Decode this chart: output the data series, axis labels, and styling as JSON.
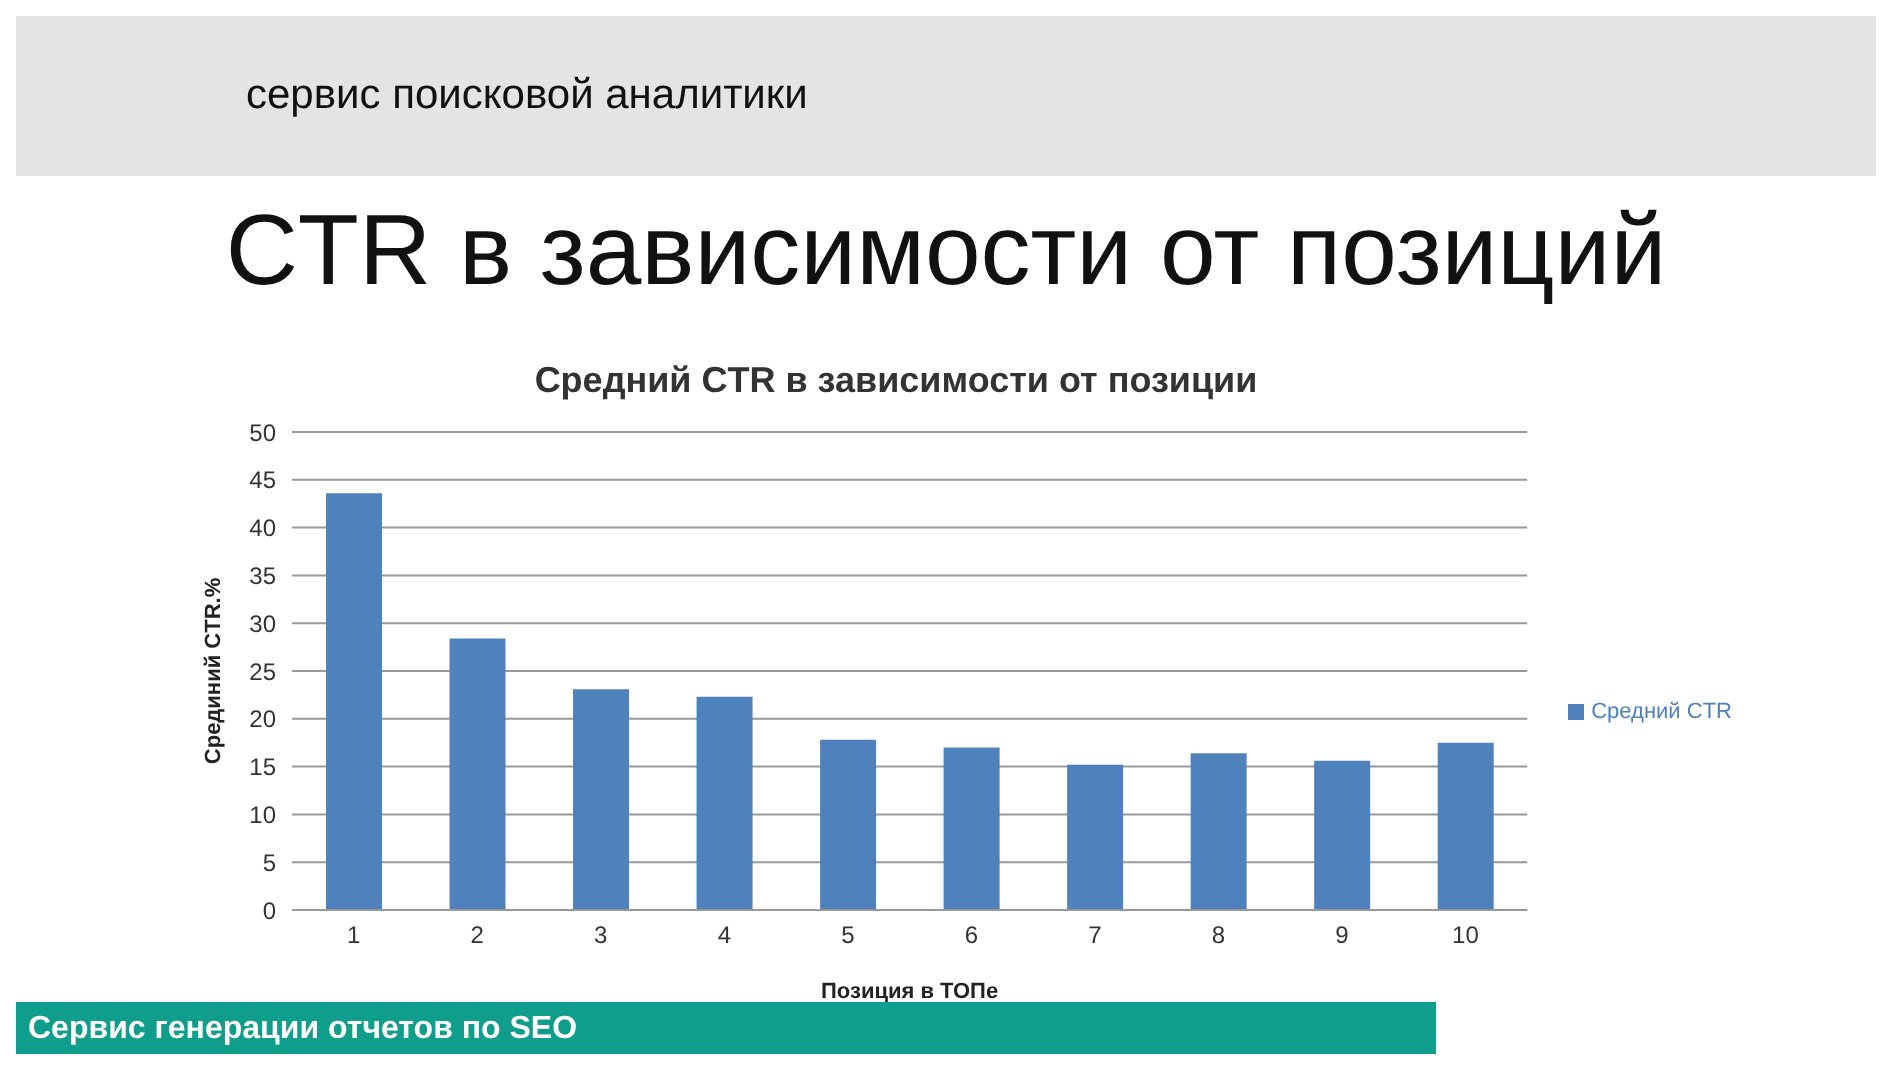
{
  "chart_data": {
    "type": "bar",
    "title": "CTR в зависимости от позиций",
    "subtitle": "Средний CTR в зависимости от позиции",
    "xlabel": "Позиция в ТОПе",
    "ylabel": "Срединий CTR.%",
    "annotations": [
      "сервис поисковой аналитики",
      "Сервис генерации отчетов по SEO"
    ],
    "categories": [
      "1",
      "2",
      "3",
      "4",
      "5",
      "6",
      "7",
      "8",
      "9",
      "10"
    ],
    "series": [
      {
        "name": "Средний CTR",
        "color": "#4f81bd",
        "values": [
          43.6,
          28.4,
          23.1,
          22.3,
          17.8,
          17.0,
          15.2,
          16.4,
          15.6,
          17.5
        ]
      }
    ],
    "ylim": [
      0,
      50
    ],
    "yticks": [
      0,
      5,
      10,
      15,
      20,
      25,
      30,
      35,
      40,
      45,
      50
    ],
    "grid": "y",
    "legend": "right"
  }
}
